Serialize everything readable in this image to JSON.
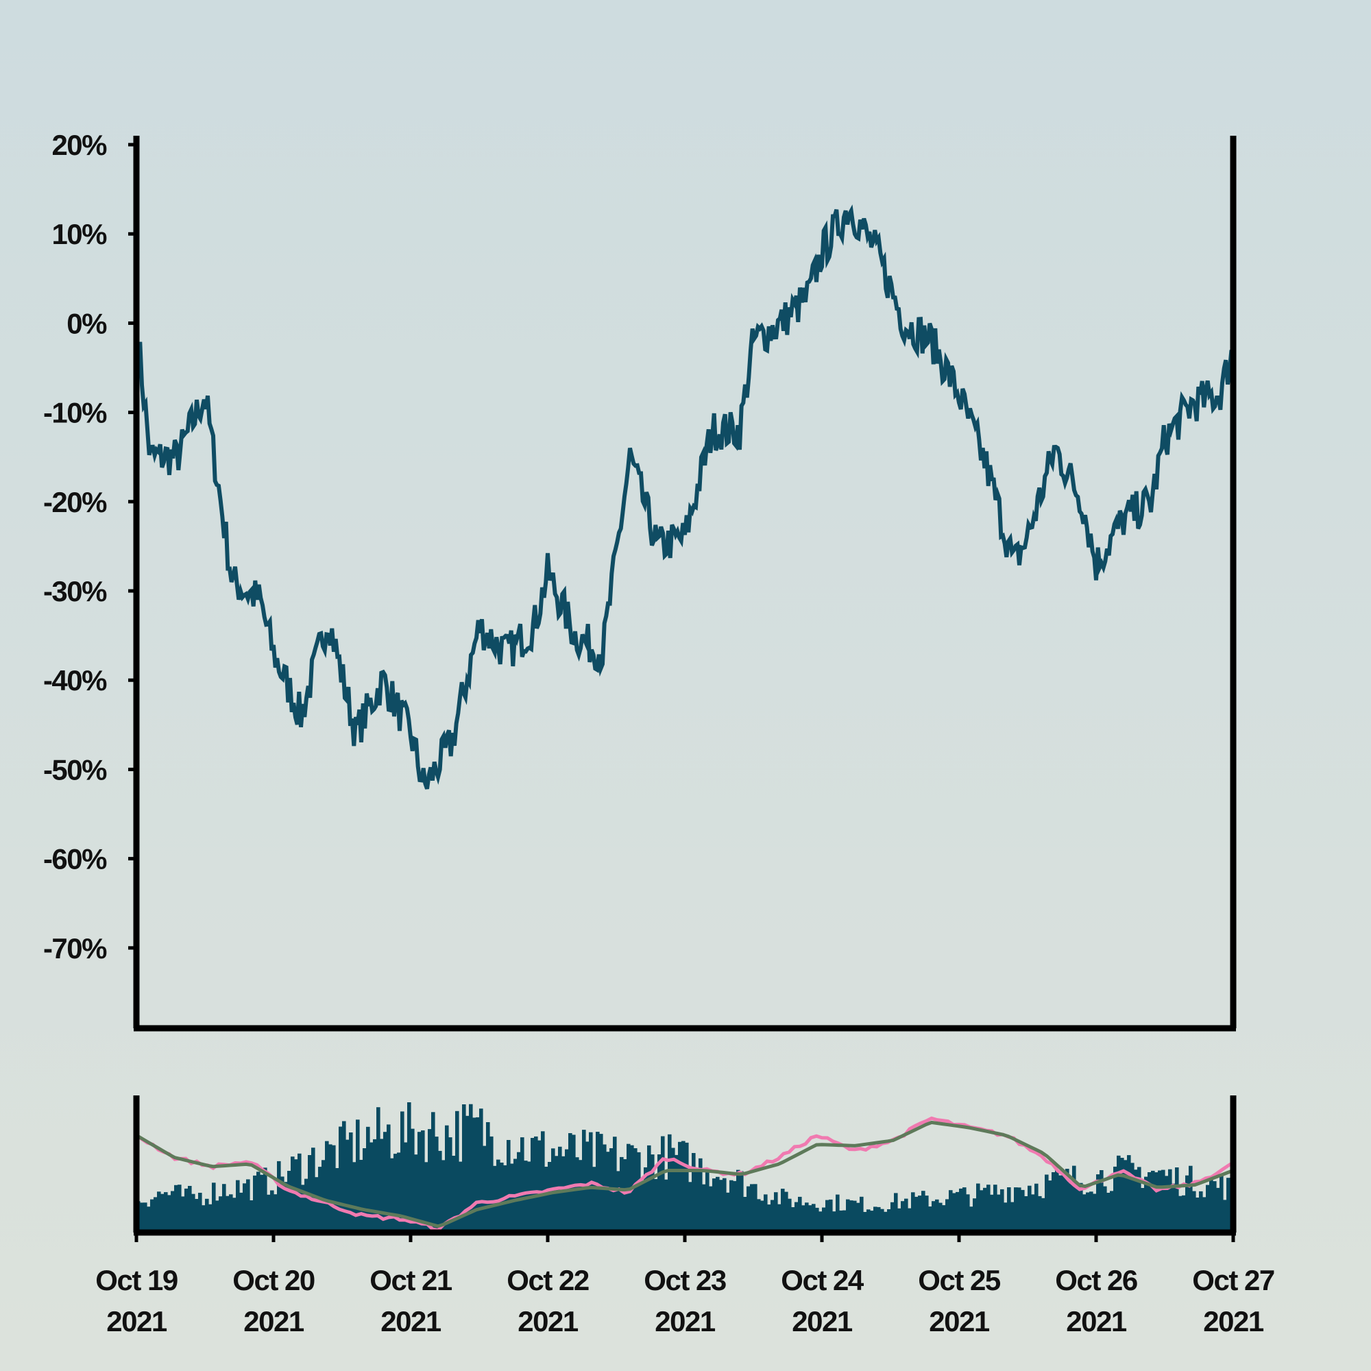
{
  "colors": {
    "background_top": "#cedcdf",
    "background_bottom": "#dce2dc",
    "price_line": "#0f4c63",
    "volume_bars": "#0a4a60",
    "ma_fast": "#f07ab0",
    "ma_slow": "#5e7a5a",
    "axis": "#000000"
  },
  "chart_data": [
    {
      "type": "line",
      "role": "price",
      "title": "",
      "xlabel": "",
      "ylabel": "",
      "y_unit": "%",
      "ylim": [
        -79,
        21
      ],
      "xlim": [
        "2021-10-19",
        "2021-10-27"
      ],
      "grid": false,
      "legend": "none",
      "yticks": [
        "20%",
        "10%",
        "0%",
        "-10%",
        "-20%",
        "-30%",
        "-40%",
        "-50%",
        "-60%",
        "-70%"
      ],
      "ytick_values": [
        20,
        10,
        0,
        -10,
        -20,
        -30,
        -40,
        -50,
        -60,
        -70
      ],
      "series": [
        {
          "x_day_offset": [
            0,
            0.1,
            0.3,
            0.5,
            0.7,
            0.9,
            1.0,
            1.2,
            1.4,
            1.6,
            1.8,
            2.0,
            2.1,
            2.3,
            2.5,
            2.7,
            2.9,
            3.0,
            3.2,
            3.4,
            3.6,
            3.8,
            4.0,
            4.2,
            4.4,
            4.5,
            4.7,
            4.9,
            5.0,
            5.2,
            5.4,
            5.6,
            5.8,
            6.0,
            6.2,
            6.4,
            6.5,
            6.7,
            6.9,
            7.0,
            7.2,
            7.4,
            7.5,
            7.7,
            7.9,
            8.0
          ],
          "x_labels": [
            "Oct 19 2021"
          ],
          "values": [
            0,
            -15,
            -15,
            -8,
            -29,
            -31,
            -37,
            -44,
            -33,
            -46,
            -40,
            -46,
            -52,
            -47,
            -34,
            -37,
            -34,
            -28,
            -35,
            -37,
            -15,
            -25,
            -24,
            -12,
            -12,
            -2,
            0,
            3,
            8,
            13,
            8,
            0,
            -2,
            -8,
            -16,
            -27,
            -24,
            -14,
            -20,
            -27,
            -22,
            -20,
            -13,
            -9,
            -8,
            -3
          ]
        }
      ],
      "x": [
        "Oct 19",
        "Oct 19",
        "Oct 19",
        "Oct 19",
        "Oct 19",
        "Oct 19",
        "Oct 20",
        "Oct 20",
        "Oct 20",
        "Oct 20",
        "Oct 20",
        "Oct 21",
        "Oct 21",
        "Oct 21",
        "Oct 21",
        "Oct 21",
        "Oct 21",
        "Oct 22",
        "Oct 22",
        "Oct 22",
        "Oct 22",
        "Oct 22",
        "Oct 23",
        "Oct 23",
        "Oct 23",
        "Oct 23",
        "Oct 23",
        "Oct 23",
        "Oct 24",
        "Oct 24",
        "Oct 24",
        "Oct 24",
        "Oct 24",
        "Oct 25",
        "Oct 25",
        "Oct 25",
        "Oct 25",
        "Oct 25",
        "Oct 25",
        "Oct 26",
        "Oct 26",
        "Oct 26",
        "Oct 26",
        "Oct 26",
        "Oct 26",
        "Oct 27"
      ],
      "values": [
        0,
        -15,
        -15,
        -8,
        -29,
        -31,
        -37,
        -44,
        -33,
        -46,
        -40,
        -46,
        -52,
        -47,
        -34,
        -37,
        -34,
        -28,
        -35,
        -37,
        -15,
        -25,
        -24,
        -12,
        -12,
        -2,
        0,
        3,
        8,
        13,
        8,
        0,
        -2,
        -8,
        -16,
        -27,
        -24,
        -14,
        -20,
        -27,
        -22,
        -20,
        -13,
        -9,
        -8,
        -3
      ]
    },
    {
      "type": "bar",
      "role": "volume",
      "title": "",
      "xlabel": "",
      "ylabel": "",
      "ylim": [
        0,
        1
      ],
      "grid": false,
      "legend": "none",
      "x_range": [
        "Oct 19 2021",
        "Oct 27 2021"
      ],
      "values": [
        0.3,
        0.36,
        0.32,
        0.4,
        0.42,
        0.5,
        0.65,
        0.74,
        0.85,
        0.9,
        0.93,
        0.9,
        0.95,
        0.85,
        0.76,
        0.74,
        0.72,
        0.7,
        0.68,
        0.7,
        0.6,
        0.52,
        0.4,
        0.3,
        0.28,
        0.27,
        0.25,
        0.28,
        0.3,
        0.33,
        0.35,
        0.4,
        0.44,
        0.48,
        0.5,
        0.55,
        0.56,
        0.48,
        0.45,
        0.4
      ]
    }
  ],
  "x_axis": {
    "ticks": [
      {
        "line1": "Oct 19",
        "line2": "2021"
      },
      {
        "line1": "Oct 20",
        "line2": "2021"
      },
      {
        "line1": "Oct 21",
        "line2": "2021"
      },
      {
        "line1": "Oct 22",
        "line2": "2021"
      },
      {
        "line1": "Oct 23",
        "line2": "2021"
      },
      {
        "line1": "Oct 24",
        "line2": "2021"
      },
      {
        "line1": "Oct 25",
        "line2": "2021"
      },
      {
        "line1": "Oct 26",
        "line2": "2021"
      },
      {
        "line1": "Oct 27",
        "line2": "2021"
      }
    ]
  },
  "moving_averages": [
    {
      "values": [
        0.72,
        0.55,
        0.48,
        0.52,
        0.3,
        0.2,
        0.1,
        0.08,
        0.0,
        0.2,
        0.25,
        0.3,
        0.35,
        0.28,
        0.55,
        0.45,
        0.42,
        0.55,
        0.72,
        0.6,
        0.68,
        0.85,
        0.78,
        0.72,
        0.55,
        0.3,
        0.45,
        0.3,
        0.35,
        0.5
      ]
    },
    {
      "values": [
        0.72,
        0.55,
        0.48,
        0.5,
        0.33,
        0.22,
        0.15,
        0.1,
        0.02,
        0.15,
        0.22,
        0.28,
        0.32,
        0.3,
        0.45,
        0.45,
        0.42,
        0.5,
        0.65,
        0.64,
        0.68,
        0.82,
        0.78,
        0.72,
        0.58,
        0.32,
        0.42,
        0.32,
        0.34,
        0.45
      ]
    }
  ]
}
